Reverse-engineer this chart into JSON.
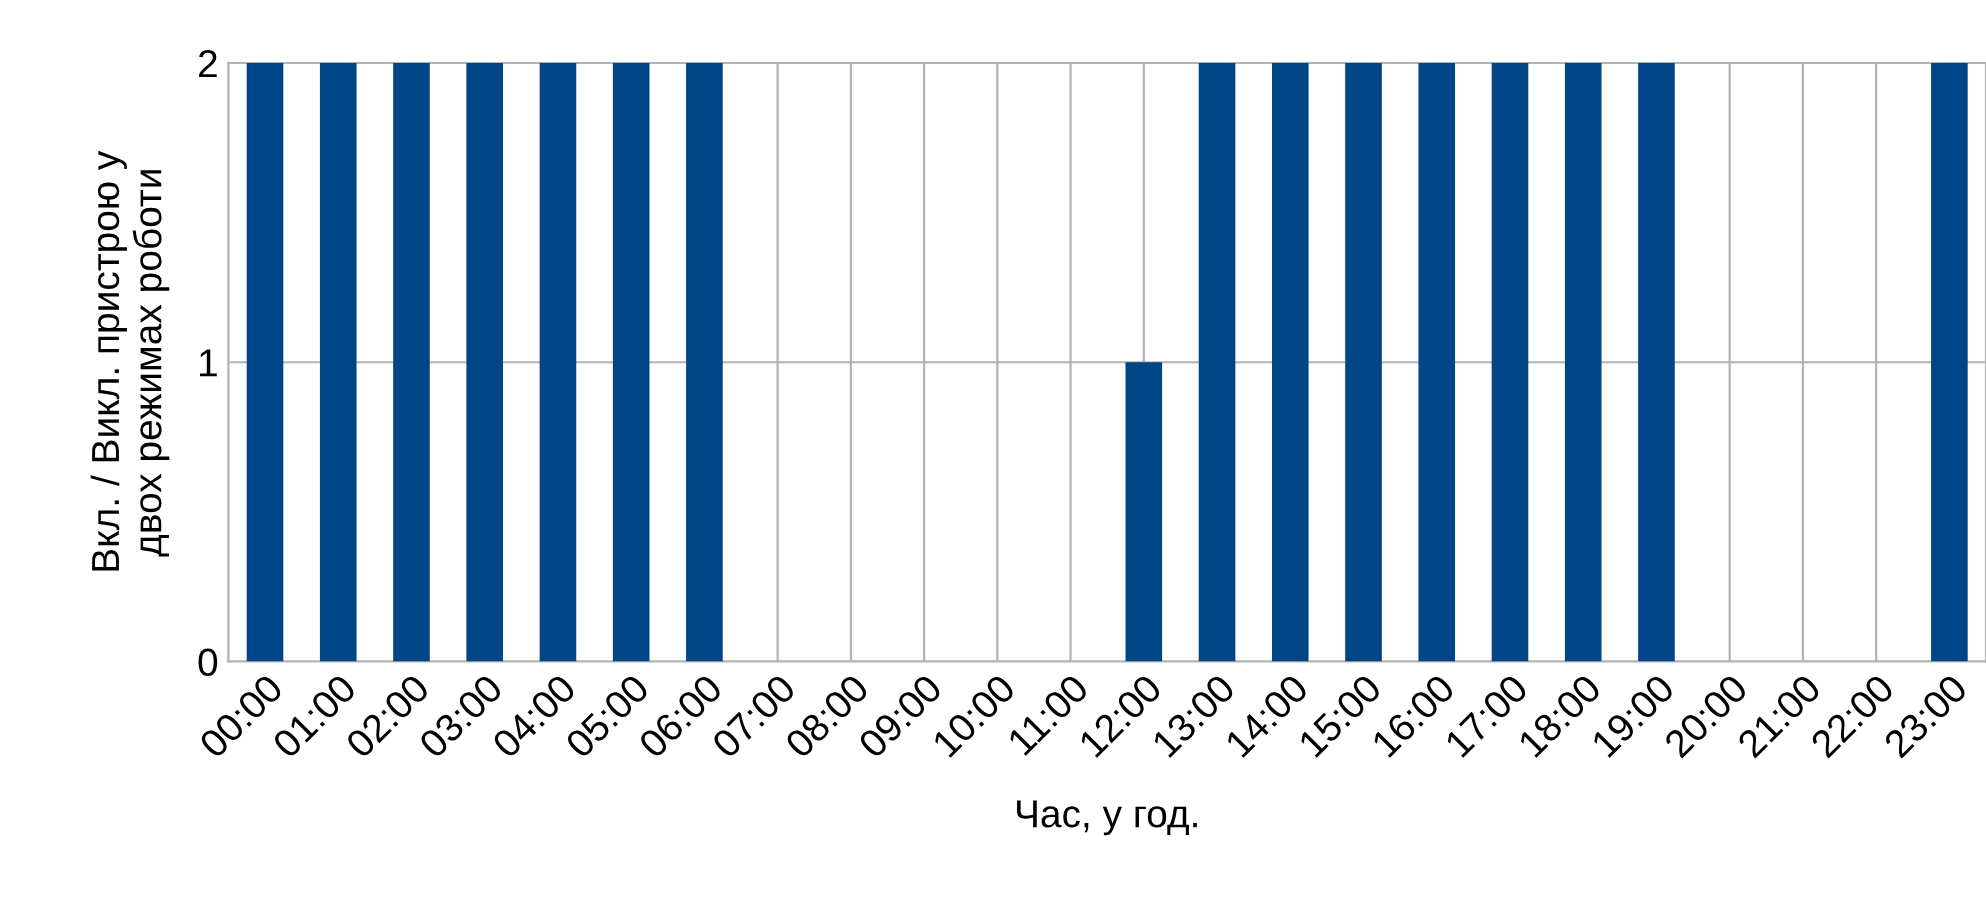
{
  "chart_data": {
    "type": "bar",
    "xlabel": "Час, у год.",
    "ylabel": "Вкл. / Викл. пристрою у\nдвох режимах роботи",
    "categories": [
      "00:00",
      "01:00",
      "02:00",
      "03:00",
      "04:00",
      "05:00",
      "06:00",
      "07:00",
      "08:00",
      "09:00",
      "10:00",
      "11:00",
      "12:00",
      "13:00",
      "14:00",
      "15:00",
      "16:00",
      "17:00",
      "18:00",
      "19:00",
      "20:00",
      "21:00",
      "22:00",
      "23:00"
    ],
    "values": [
      2,
      2,
      2,
      2,
      2,
      2,
      2,
      0,
      0,
      0,
      0,
      0,
      1,
      2,
      2,
      2,
      2,
      2,
      2,
      2,
      0,
      0,
      0,
      2
    ],
    "color": "#004586",
    "ylim": [
      0,
      2
    ],
    "yticks": [
      0,
      1,
      2
    ],
    "grid": true,
    "legend": false
  }
}
